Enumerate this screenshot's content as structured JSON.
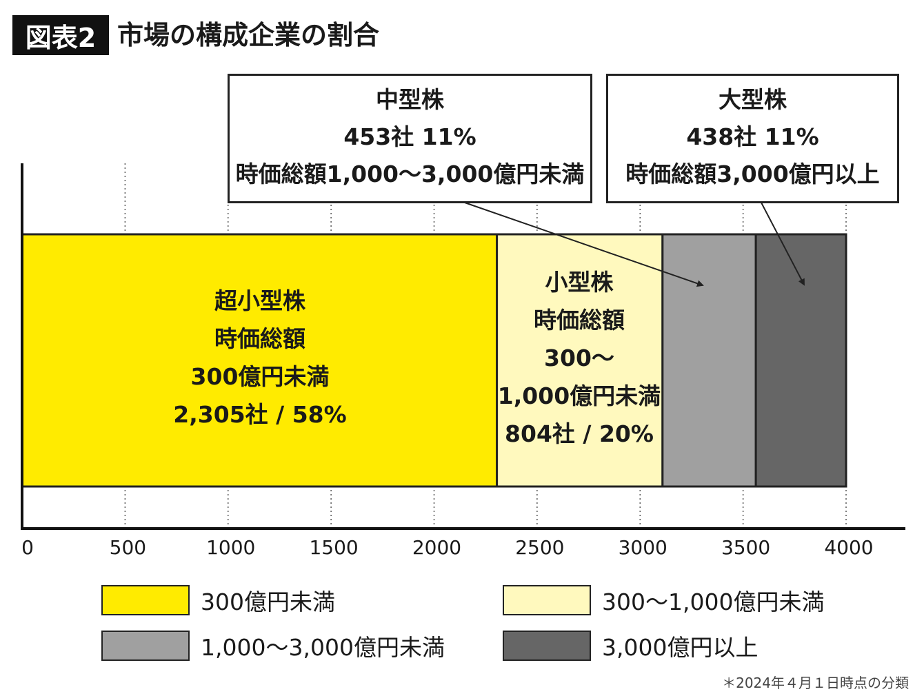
{
  "title": {
    "badge": "図表2",
    "text": "市場の構成企業の割合"
  },
  "callouts": {
    "mid": {
      "line1": "中型株",
      "line2": "453社 11%",
      "line3": "時価総額1,000〜3,000億円未満"
    },
    "large": {
      "line1": "大型株",
      "line2": "438社 11%",
      "line3": "時価総額3,000億円以上"
    }
  },
  "segment_labels": {
    "micro": {
      "line1": "超小型株",
      "line2": "時価総額",
      "line3": "300億円未満",
      "line4": "2,305社 / 58%"
    },
    "small": {
      "line1": "小型株",
      "line2": "時価総額",
      "line3": "300〜",
      "line4": "1,000億円未満",
      "line5": "804社 / 20%"
    }
  },
  "legend": [
    {
      "label": "300億円未満",
      "color": "#FFEB00"
    },
    {
      "label": "300〜1,000億円未満",
      "color": "#FFF9BE"
    },
    {
      "label": "1,000〜3,000億円未満",
      "color": "#A0A0A0"
    },
    {
      "label": "3,000億円以上",
      "color": "#666666"
    }
  ],
  "footnote": "＊2024年４月１日時点の分類",
  "chart_data": {
    "type": "bar",
    "orientation": "horizontal-stacked",
    "title": "市場の構成企業の割合",
    "xlim": [
      0,
      4000
    ],
    "xticks": [
      "0",
      "500",
      "1000",
      "1500",
      "2000",
      "2500",
      "3000",
      "3500",
      "4000"
    ],
    "grid": "vertical dotted",
    "legend_placement": "bottom",
    "series": [
      {
        "name": "300億円未満",
        "values": [
          2305
        ],
        "percent": 58,
        "color": "#FFEB00"
      },
      {
        "name": "300〜1,000億円未満",
        "values": [
          804
        ],
        "percent": 20,
        "color": "#FFF9BE"
      },
      {
        "name": "1,000〜3,000億円未満",
        "values": [
          453
        ],
        "percent": 11,
        "color": "#A0A0A0"
      },
      {
        "name": "3,000億円以上",
        "values": [
          438
        ],
        "percent": 11,
        "color": "#666666"
      }
    ]
  }
}
